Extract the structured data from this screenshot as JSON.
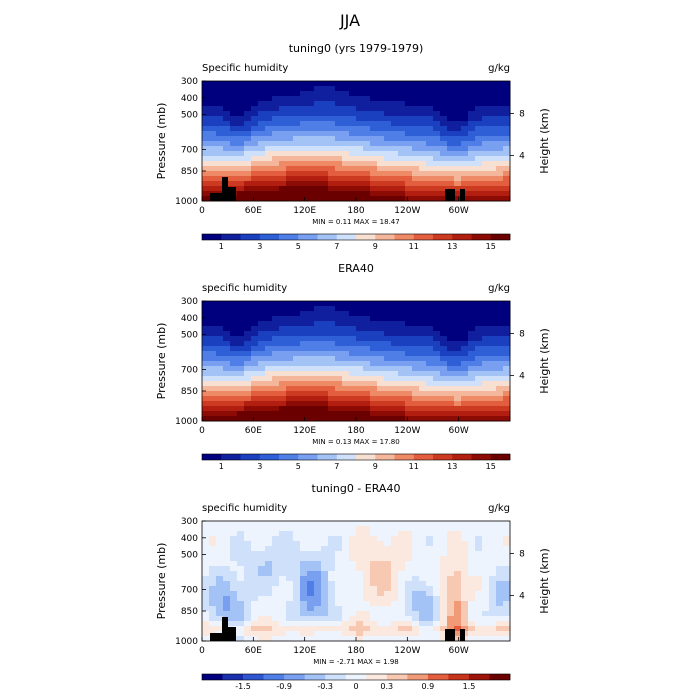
{
  "page_title": "JJA",
  "chart_data": [
    {
      "type": "heatmap",
      "title": "tuning0 (yrs 1979-1979)",
      "left_label": "Specific humidity",
      "units": "g/kg",
      "ylabel": "Pressure (mb)",
      "ylabel_right": "Height (km)",
      "x_ticks": [
        "0",
        "60E",
        "120E",
        "180",
        "120W",
        "60W"
      ],
      "y_ticks": [
        "300",
        "400",
        "500",
        "700",
        "850",
        "1000"
      ],
      "y_ticks_right": [
        "8",
        "4"
      ],
      "stats": "MIN =    0.11   MAX =   18.47",
      "colorbar_labels": [
        "1",
        "3",
        "5",
        "7",
        "9",
        "11",
        "13",
        "15"
      ],
      "colorbar_colors": [
        "#00007f",
        "#0f1f9e",
        "#1a3fbf",
        "#2f5fd6",
        "#4f7fe6",
        "#789ff0",
        "#a3c3f7",
        "#cfe0fb",
        "#f7e0d2",
        "#f5b79c",
        "#ef8a66",
        "#e35e3e",
        "#cc3a21",
        "#b21f10",
        "#8c0c05",
        "#6b0000"
      ],
      "has_topography": true
    },
    {
      "type": "heatmap",
      "title": "ERA40",
      "left_label": "specific humidity",
      "units": "g/kg",
      "ylabel": "Pressure (mb)",
      "ylabel_right": "Height (km)",
      "x_ticks": [
        "0",
        "60E",
        "120E",
        "180",
        "120W",
        "60W"
      ],
      "y_ticks": [
        "300",
        "400",
        "500",
        "700",
        "850",
        "1000"
      ],
      "y_ticks_right": [
        "8",
        "4"
      ],
      "stats": "MIN =    0.13   MAX =   17.80",
      "colorbar_labels": [
        "1",
        "3",
        "5",
        "7",
        "9",
        "11",
        "13",
        "15"
      ],
      "colorbar_colors": [
        "#00007f",
        "#0f1f9e",
        "#1a3fbf",
        "#2f5fd6",
        "#4f7fe6",
        "#789ff0",
        "#a3c3f7",
        "#cfe0fb",
        "#f7e0d2",
        "#f5b79c",
        "#ef8a66",
        "#e35e3e",
        "#cc3a21",
        "#b21f10",
        "#8c0c05",
        "#6b0000"
      ],
      "has_topography": false
    },
    {
      "type": "heatmap",
      "title": "tuning0 - ERA40",
      "left_label": "specific humidity",
      "units": "g/kg",
      "ylabel": "Pressure (mb)",
      "ylabel_right": "Height (km)",
      "x_ticks": [
        "0",
        "60E",
        "120E",
        "180",
        "120W",
        "60W"
      ],
      "y_ticks": [
        "300",
        "400",
        "500",
        "700",
        "850",
        "1000"
      ],
      "y_ticks_right": [
        "8",
        "4"
      ],
      "stats": "MIN =   -2.71   MAX =    1.98",
      "colorbar_labels": [
        "-1.5",
        "-0.9",
        "-0.3",
        "0",
        "0.3",
        "0.9",
        "1.5"
      ],
      "colorbar_colors": [
        "#00007f",
        "#1a2fae",
        "#2f55d0",
        "#4f7fe6",
        "#789ff0",
        "#a3c3f7",
        "#cfe0fb",
        "#eef4fd",
        "#fbe9e0",
        "#f7c9b2",
        "#f09a78",
        "#e35e3e",
        "#c8331c",
        "#9e140a",
        "#6b0000"
      ],
      "has_topography": true
    }
  ]
}
